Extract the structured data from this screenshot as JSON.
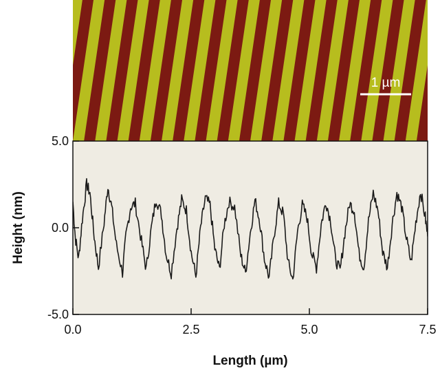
{
  "afm_image": {
    "scale_bar_label": "1 µm",
    "stripe_colors": {
      "bright": "#b7bd1e",
      "dark": "#7c1a12"
    },
    "stripe_count": 16
  },
  "chart_data": {
    "type": "line",
    "title": "",
    "xlabel": "Length (µm)",
    "ylabel": "Height (nm)",
    "xlim": [
      0.0,
      7.5
    ],
    "ylim": [
      -5.0,
      5.0
    ],
    "x_ticks": [
      "0.0",
      "2.5",
      "5.0",
      "7.5"
    ],
    "y_ticks": [
      "-5.0",
      "0.0",
      "5.0"
    ],
    "grid": false,
    "plot_background": "#efece3",
    "line_color": "#1a1a1a",
    "series": [
      {
        "x": [
          0.0,
          0.05,
          0.12,
          0.2,
          0.29,
          0.36,
          0.45,
          0.54,
          0.66,
          0.74,
          0.82,
          0.92,
          1.05,
          1.12,
          1.22,
          1.32,
          1.45,
          1.55,
          1.66,
          1.76,
          1.87,
          1.97,
          2.08,
          2.2,
          2.3,
          2.4,
          2.5,
          2.6,
          2.7,
          2.8,
          2.9,
          3.0,
          3.1,
          3.2,
          3.3,
          3.42,
          3.55,
          3.65,
          3.75,
          3.85,
          3.95,
          4.05,
          4.15,
          4.25,
          4.35,
          4.45,
          4.55,
          4.65,
          4.75,
          4.85,
          4.95,
          5.05,
          5.15,
          5.25,
          5.35,
          5.45,
          5.55,
          5.65,
          5.75,
          5.85,
          5.95,
          6.05,
          6.15,
          6.25,
          6.35,
          6.45,
          6.55,
          6.65,
          6.75,
          6.85,
          6.95,
          7.05,
          7.15,
          7.25,
          7.35,
          7.45,
          7.5
        ],
        "y": [
          1.5,
          -0.5,
          -1.8,
          0.5,
          2.5,
          2.0,
          -0.5,
          -2.3,
          0.3,
          2.4,
          1.2,
          -1.0,
          -2.6,
          -0.5,
          1.2,
          1.4,
          -0.8,
          -2.4,
          0.0,
          1.7,
          0.8,
          -1.5,
          -2.6,
          0.0,
          1.6,
          1.0,
          -1.4,
          -2.8,
          0.0,
          1.7,
          1.3,
          -1.2,
          -2.4,
          0.2,
          1.5,
          1.2,
          -1.6,
          -2.6,
          -0.3,
          1.6,
          0.4,
          -1.8,
          -2.9,
          -0.5,
          1.4,
          0.8,
          -2.0,
          -3.0,
          -0.2,
          1.3,
          0.6,
          -1.5,
          -2.3,
          0.2,
          1.5,
          0.4,
          -1.8,
          -2.5,
          -0.3,
          1.4,
          1.0,
          -1.5,
          -2.3,
          0.4,
          2.0,
          1.0,
          -1.4,
          -2.3,
          0.2,
          2.0,
          1.2,
          -0.6,
          -2.0,
          0.3,
          2.1,
          0.6,
          -0.5
        ]
      }
    ]
  }
}
